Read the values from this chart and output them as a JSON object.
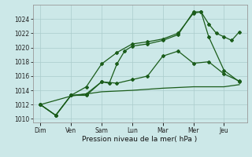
{
  "bg_color": "#cce8e8",
  "grid_color": "#aacccc",
  "line_color": "#1a5c1a",
  "xlabel": "Pression niveau de la mer( hPa )",
  "ylim": [
    1009.5,
    1026.0
  ],
  "yticks": [
    1010,
    1012,
    1014,
    1016,
    1018,
    1020,
    1022,
    1024
  ],
  "x_labels": [
    "Dim",
    "Ven",
    "Sam",
    "Lun",
    "Mar",
    "Mer",
    "Jeu"
  ],
  "x_tick_pos": [
    0,
    2,
    4,
    6,
    8,
    10,
    12
  ],
  "xlim": [
    -0.5,
    13.5
  ],
  "line_sharp": {
    "x": [
      0,
      1,
      2,
      3,
      4,
      4.5,
      5,
      5.5,
      6,
      7,
      8,
      9,
      10,
      10.5,
      11,
      11.5,
      12,
      12.5,
      13
    ],
    "y": [
      1012,
      1010.5,
      1013.3,
      1013.3,
      1015.2,
      1015.0,
      1017.7,
      1019.5,
      1020.2,
      1020.5,
      1021.0,
      1021.8,
      1025.0,
      1025.0,
      1023.3,
      1022.0,
      1021.5,
      1021.0,
      1022.2
    ]
  },
  "line_smooth_high": {
    "x": [
      0,
      1,
      2,
      3,
      4,
      5,
      6,
      7,
      8,
      9,
      10,
      10.5,
      11,
      12,
      13
    ],
    "y": [
      1012,
      1010.5,
      1013.3,
      1014.5,
      1017.7,
      1019.3,
      1020.5,
      1020.8,
      1021.2,
      1022.0,
      1024.8,
      1025.0,
      1021.5,
      1016.8,
      1015.2
    ]
  },
  "line_smooth_low": {
    "x": [
      0,
      1,
      2,
      3,
      4,
      5,
      6,
      7,
      8,
      9,
      10,
      11,
      12,
      13
    ],
    "y": [
      1012,
      1010.5,
      1013.3,
      1013.5,
      1015.2,
      1015.0,
      1015.5,
      1016.0,
      1018.8,
      1019.5,
      1017.8,
      1018.0,
      1016.3,
      1015.3
    ]
  },
  "line_flat": {
    "x": [
      0,
      2,
      4,
      6,
      8,
      10,
      12,
      13
    ],
    "y": [
      1012.0,
      1013.2,
      1013.8,
      1014.0,
      1014.3,
      1014.5,
      1014.5,
      1014.8
    ]
  }
}
